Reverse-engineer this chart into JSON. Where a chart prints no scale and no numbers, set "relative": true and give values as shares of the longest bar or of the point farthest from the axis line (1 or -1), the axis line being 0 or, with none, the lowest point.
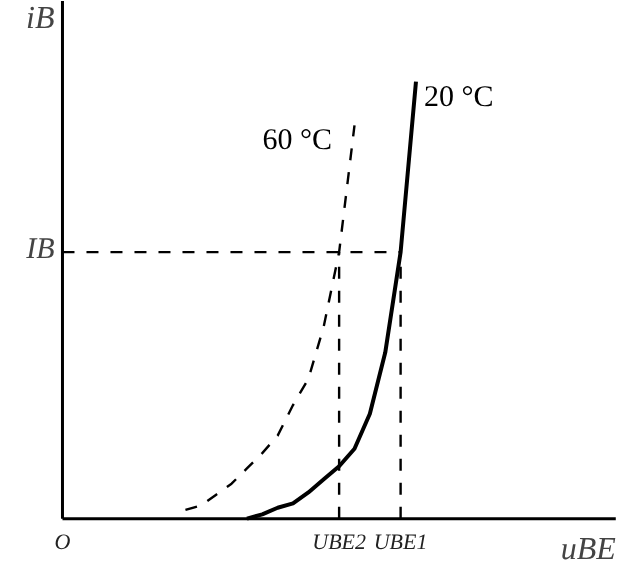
{
  "chart_data": {
    "type": "line",
    "relative": true,
    "xlabel": "uBE",
    "ylabel": "iB",
    "grid": false,
    "legend": false,
    "marker": "none",
    "categories": [
      "O",
      null,
      null,
      null,
      null,
      null,
      null,
      null,
      null,
      null,
      null,
      null,
      null,
      null,
      null,
      null,
      null,
      null,
      "UBE2",
      null,
      null,
      null,
      "UBE1",
      null,
      null,
      null,
      null,
      null,
      null,
      null,
      null,
      null,
      null,
      null,
      null,
      null,
      null
    ],
    "ref_lines": [
      {
        "axis": "y",
        "value": 0.61,
        "label": "IB",
        "line_style": "dashed",
        "color": "#000000"
      },
      {
        "axis": "x",
        "value": "UBE2",
        "line_style": "dashed",
        "color": "#000000"
      },
      {
        "axis": "x",
        "value": "UBE1",
        "line_style": "dashed",
        "color": "#000000"
      }
    ],
    "series": [
      {
        "name": "60 °C",
        "color": "#000000",
        "line_style": "dashed",
        "values": [
          null,
          null,
          null,
          null,
          null,
          null,
          null,
          null,
          0.02,
          0.03,
          0.055,
          0.08,
          0.115,
          0.15,
          0.19,
          0.26,
          0.32,
          0.44,
          0.61,
          0.9,
          null,
          null,
          null,
          null,
          null,
          null,
          null,
          null,
          null,
          null,
          null,
          null,
          null,
          null,
          null,
          null,
          null
        ]
      },
      {
        "name": "20 °C",
        "color": "#000000",
        "line_style": "solid",
        "values": [
          null,
          null,
          null,
          null,
          null,
          null,
          null,
          null,
          null,
          null,
          null,
          null,
          0,
          0.01,
          0.025,
          0.035,
          0.06,
          0.09,
          0.12,
          0.16,
          0.24,
          0.38,
          0.61,
          1.0,
          null,
          null,
          null,
          null,
          null,
          null,
          null,
          null,
          null,
          null,
          null,
          null,
          null
        ]
      }
    ]
  }
}
